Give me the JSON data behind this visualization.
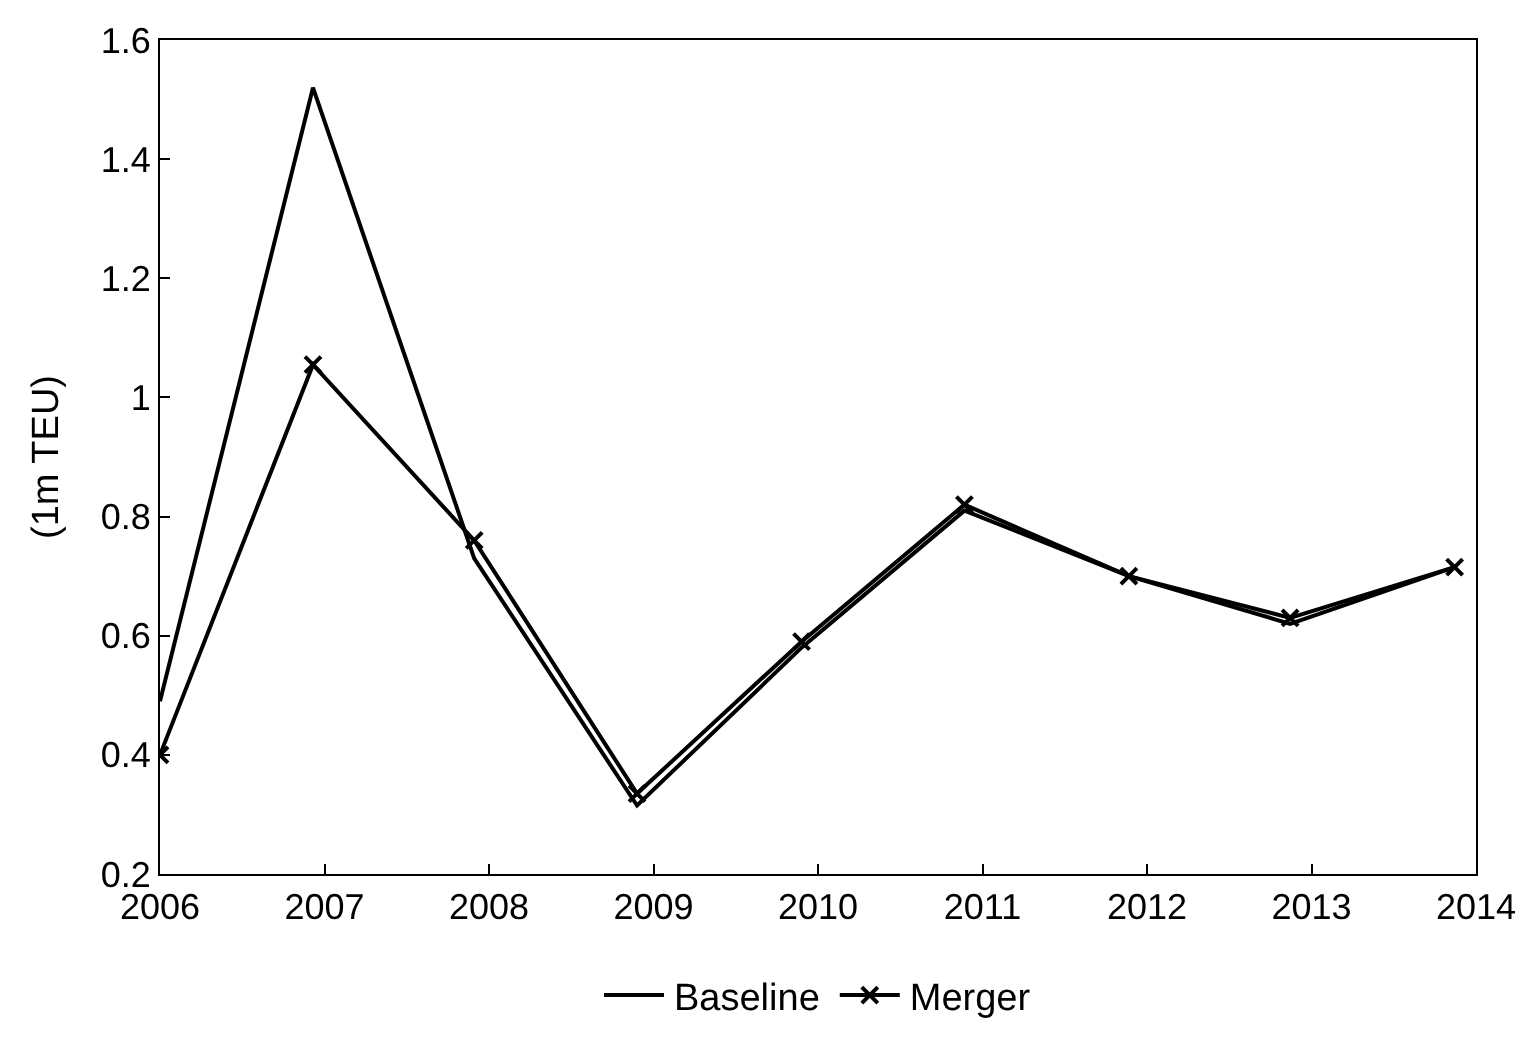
{
  "chart_data": {
    "type": "line",
    "ylabel": "(1m TEU)",
    "x": [
      2006,
      2006.93,
      2007.91,
      2008.9,
      2009.9,
      2010.89,
      2011.89,
      2012.87,
      2013.87
    ],
    "series": [
      {
        "name": "Baseline",
        "color": "#000000",
        "marker": "none",
        "values": [
          0.49,
          1.52,
          0.73,
          0.315,
          0.58,
          0.81,
          0.7,
          0.62,
          0.715
        ]
      },
      {
        "name": "Merger",
        "color": "#000000",
        "marker": "cross",
        "values": [
          0.4,
          1.055,
          0.76,
          0.335,
          0.59,
          0.82,
          0.7,
          0.63,
          0.715
        ]
      }
    ],
    "xlim": [
      2006,
      2014
    ],
    "xticks": [
      2006,
      2007,
      2008,
      2009,
      2010,
      2011,
      2012,
      2013,
      2014
    ],
    "ylim": [
      0.2,
      1.6
    ],
    "yticks": [
      0.2,
      0.4,
      0.6,
      0.8,
      1,
      1.2,
      1.4,
      1.6
    ],
    "legend": "bottom",
    "line_style": "solid"
  }
}
